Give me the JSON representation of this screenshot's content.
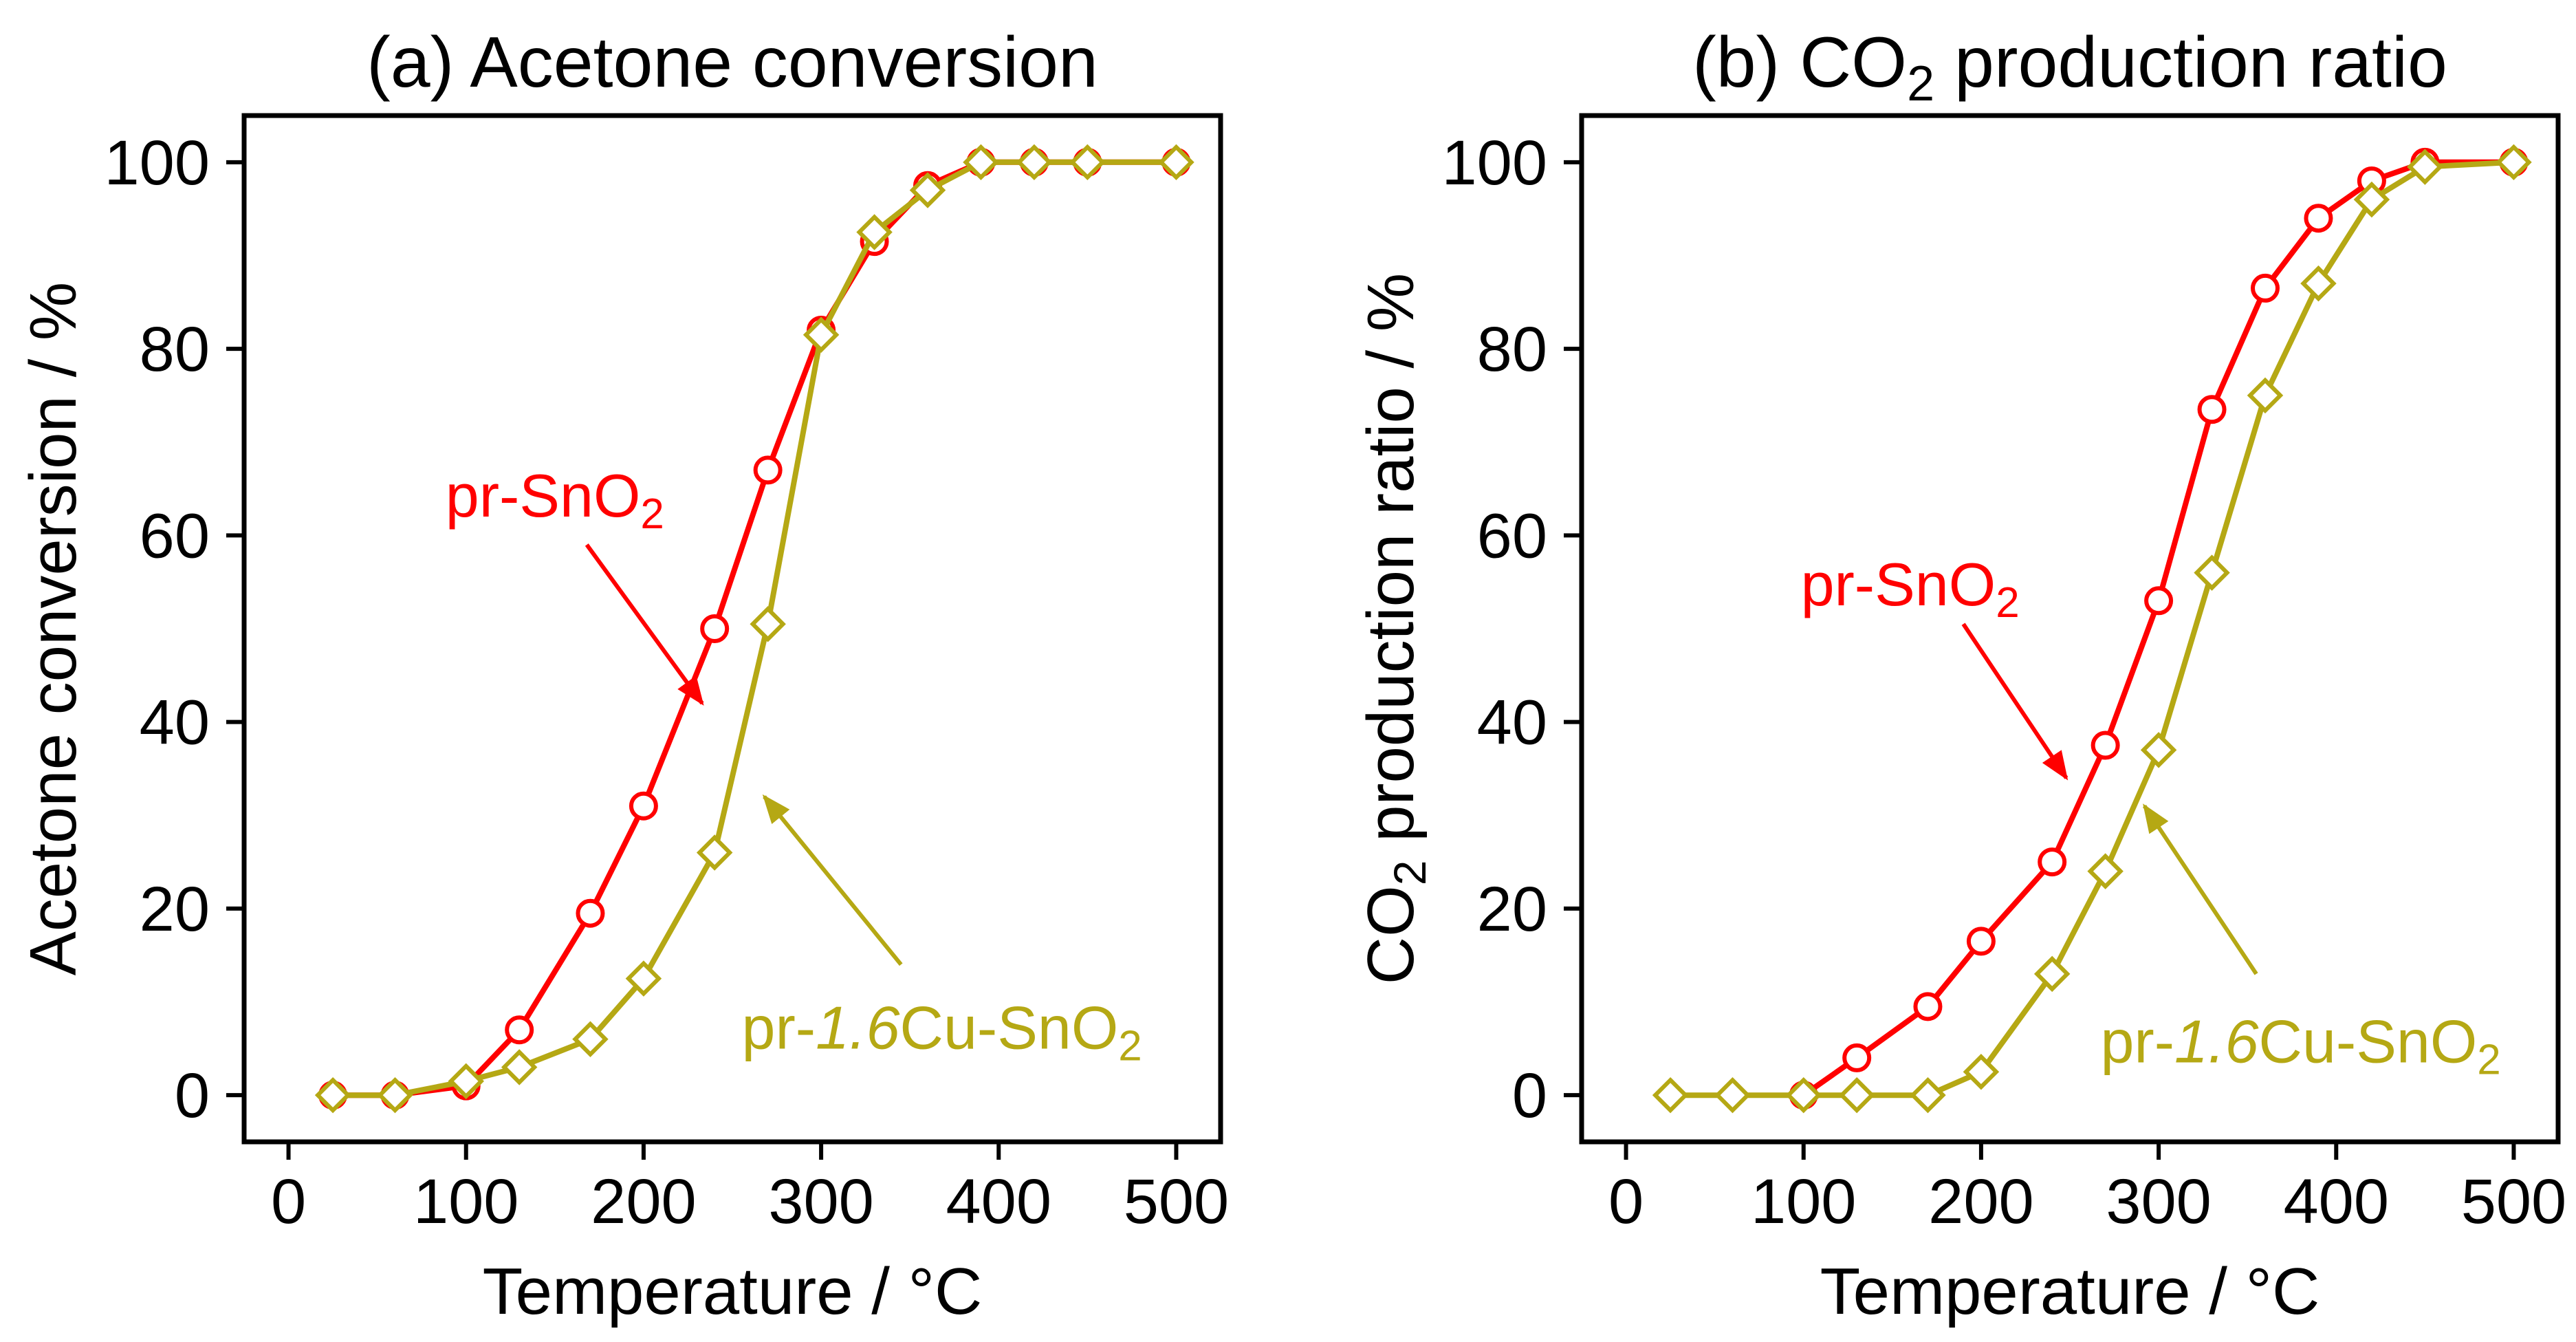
{
  "colors": {
    "pr_sno2": "#ff0000",
    "pr_cu_sno2": "#b5a814",
    "axis": "#000000",
    "background": "#ffffff"
  },
  "chart_data": [
    {
      "type": "line",
      "panel": "(a)",
      "title_prefix": "(a) ",
      "title_main": "Acetone conversion",
      "title_sub": "",
      "title_rest": "",
      "xlabel": "Temperature / °C",
      "ylabel_main": "Acetone conversion / %",
      "ylabel_sub": "",
      "ylabel_rest": "",
      "xlim": [
        -25,
        525
      ],
      "ylim": [
        -5,
        105
      ],
      "xticks": [
        "0",
        "100",
        "200",
        "300",
        "400",
        "500"
      ],
      "yticks": [
        "0",
        "20",
        "40",
        "60",
        "80",
        "100"
      ],
      "series": [
        {
          "name": "pr-SnO2",
          "label_prefix": "pr-SnO",
          "label_italic": "",
          "label_main": "",
          "label_sub": "2",
          "marker": "circle",
          "x": [
            25,
            60,
            100,
            130,
            170,
            200,
            240,
            270,
            300,
            330,
            360,
            390,
            420,
            450,
            500
          ],
          "y": [
            0,
            0,
            1,
            7,
            19.5,
            31,
            50,
            67,
            82,
            91.5,
            97.5,
            100,
            100,
            100,
            100
          ]
        },
        {
          "name": "pr-1.6Cu-SnO2",
          "label_prefix": "pr-",
          "label_italic": "1.6",
          "label_main": "Cu-SnO",
          "label_sub": "2",
          "marker": "diamond",
          "x": [
            25,
            60,
            100,
            130,
            170,
            200,
            240,
            270,
            300,
            330,
            360,
            390,
            420,
            450,
            500
          ],
          "y": [
            0,
            0,
            1.5,
            3,
            6,
            12.5,
            26,
            50.5,
            81.5,
            92.5,
            97,
            100,
            100,
            100,
            100
          ]
        }
      ],
      "annotations": [
        {
          "series": 0,
          "text_x": 150,
          "text_y": 62,
          "arrow_from": [
            168,
            59
          ],
          "arrow_to": [
            233,
            42
          ]
        },
        {
          "series": 1,
          "text_x": 368,
          "text_y": 5,
          "arrow_from": [
            345,
            14
          ],
          "arrow_to": [
            268,
            32
          ]
        }
      ]
    },
    {
      "type": "line",
      "panel": "(b)",
      "title_prefix": "(b) CO",
      "title_main": "",
      "title_sub": "2",
      "title_rest": " production ratio",
      "xlabel": "Temperature / °C",
      "ylabel_main": "CO",
      "ylabel_sub": "2",
      "ylabel_rest": " production ratio / %",
      "xlim": [
        -25,
        525
      ],
      "ylim": [
        -5,
        105
      ],
      "xticks": [
        "0",
        "100",
        "200",
        "300",
        "400",
        "500"
      ],
      "yticks": [
        "0",
        "20",
        "40",
        "60",
        "80",
        "100"
      ],
      "series": [
        {
          "name": "pr-SnO2",
          "label_prefix": "pr-SnO",
          "label_italic": "",
          "label_main": "",
          "label_sub": "2",
          "marker": "circle",
          "x": [
            100,
            130,
            170,
            200,
            240,
            270,
            300,
            330,
            360,
            390,
            420,
            450,
            500
          ],
          "y": [
            0,
            4,
            9.5,
            16.5,
            25,
            37.5,
            53,
            73.5,
            86.5,
            94,
            98,
            100,
            100
          ]
        },
        {
          "name": "pr-1.6Cu-SnO2",
          "label_prefix": "pr-",
          "label_italic": "1.6",
          "label_main": "Cu-SnO",
          "label_sub": "2",
          "marker": "diamond",
          "x": [
            25,
            60,
            100,
            130,
            170,
            200,
            240,
            270,
            300,
            330,
            360,
            390,
            420,
            450,
            500
          ],
          "y": [
            0,
            0,
            0,
            0,
            0,
            2.5,
            13,
            24,
            37,
            56,
            75,
            87,
            96,
            99.5,
            100
          ]
        }
      ],
      "annotations": [
        {
          "series": 0,
          "text_x": 160,
          "text_y": 52.5,
          "arrow_from": [
            190,
            50.5
          ],
          "arrow_to": [
            248,
            34
          ]
        },
        {
          "series": 1,
          "text_x": 380,
          "text_y": 3.5,
          "arrow_from": [
            355,
            13
          ],
          "arrow_to": [
            292,
            31
          ]
        }
      ]
    }
  ]
}
